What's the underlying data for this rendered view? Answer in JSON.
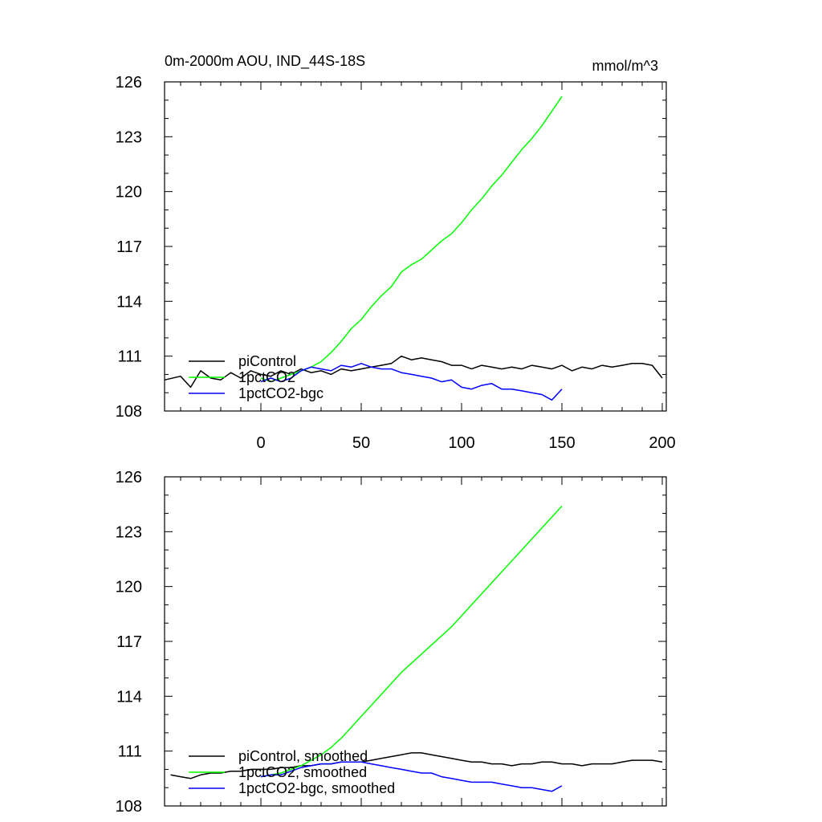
{
  "chart_data": [
    {
      "type": "line",
      "title": "0m-2000m AOU, IND_44S-18S",
      "units": "mmol/m^3",
      "xlim": [
        -48,
        202
      ],
      "ylim": [
        108,
        126
      ],
      "x_ticks": [
        0,
        50,
        100,
        150,
        200
      ],
      "x_tick_labels": [
        "0",
        "50",
        "100",
        "150",
        "200"
      ],
      "y_ticks": [
        108,
        111,
        114,
        117,
        120,
        123,
        126
      ],
      "y_tick_labels": [
        "108",
        "111",
        "114",
        "117",
        "120",
        "123",
        "126"
      ],
      "legend_position": "bottom-left",
      "series": [
        {
          "name": "piControl",
          "color": "#000000",
          "x": [
            -48,
            -40,
            -35,
            -30,
            -25,
            -20,
            -15,
            -10,
            -5,
            0,
            5,
            10,
            15,
            20,
            25,
            30,
            35,
            40,
            45,
            50,
            55,
            60,
            65,
            70,
            75,
            80,
            85,
            90,
            95,
            100,
            105,
            110,
            115,
            120,
            125,
            130,
            135,
            140,
            145,
            150,
            155,
            160,
            165,
            170,
            175,
            180,
            185,
            190,
            195,
            200
          ],
          "values": [
            109.7,
            109.9,
            109.3,
            110.2,
            109.8,
            109.7,
            110.1,
            109.8,
            110.2,
            110.0,
            109.9,
            110.2,
            110.0,
            110.3,
            110.1,
            110.2,
            110.0,
            110.3,
            110.2,
            110.3,
            110.4,
            110.5,
            110.6,
            111.0,
            110.8,
            110.9,
            110.8,
            110.7,
            110.5,
            110.5,
            110.3,
            110.5,
            110.4,
            110.3,
            110.4,
            110.3,
            110.5,
            110.4,
            110.3,
            110.5,
            110.2,
            110.4,
            110.3,
            110.5,
            110.4,
            110.5,
            110.6,
            110.6,
            110.5,
            109.8
          ]
        },
        {
          "name": "1pctCO2",
          "color": "#00ff00",
          "x": [
            0,
            5,
            10,
            15,
            20,
            25,
            30,
            35,
            40,
            45,
            50,
            55,
            60,
            65,
            70,
            75,
            80,
            85,
            90,
            95,
            100,
            105,
            110,
            115,
            120,
            125,
            130,
            135,
            140,
            145,
            150
          ],
          "values": [
            109.8,
            109.6,
            109.8,
            110.0,
            110.2,
            110.4,
            110.7,
            111.2,
            111.8,
            112.5,
            113.0,
            113.7,
            114.3,
            114.8,
            115.6,
            116.0,
            116.3,
            116.8,
            117.3,
            117.7,
            118.3,
            119.0,
            119.6,
            120.3,
            120.9,
            121.6,
            122.3,
            122.9,
            123.6,
            124.4,
            125.2
          ]
        },
        {
          "name": "1pctCO2-bgc",
          "color": "#0000ff",
          "x": [
            0,
            5,
            10,
            15,
            20,
            25,
            30,
            35,
            40,
            45,
            50,
            55,
            60,
            65,
            70,
            75,
            80,
            85,
            90,
            95,
            100,
            105,
            110,
            115,
            120,
            125,
            130,
            135,
            140,
            145,
            150
          ],
          "values": [
            109.6,
            109.8,
            109.6,
            109.8,
            110.2,
            110.4,
            110.3,
            110.2,
            110.5,
            110.4,
            110.6,
            110.4,
            110.3,
            110.3,
            110.1,
            110.0,
            109.9,
            109.8,
            109.6,
            109.7,
            109.3,
            109.2,
            109.4,
            109.5,
            109.2,
            109.2,
            109.1,
            109.0,
            108.9,
            108.6,
            109.2
          ]
        }
      ]
    },
    {
      "type": "line",
      "title": "",
      "units": "",
      "xlim": [
        -48,
        202
      ],
      "ylim": [
        108,
        126
      ],
      "x_ticks": [
        0,
        50,
        100,
        150,
        200
      ],
      "x_tick_labels": [],
      "y_ticks": [
        108,
        111,
        114,
        117,
        120,
        123,
        126
      ],
      "y_tick_labels": [
        "108",
        "111",
        "114",
        "117",
        "120",
        "123",
        "126"
      ],
      "legend_position": "bottom-left",
      "series": [
        {
          "name": "piControl, smoothed",
          "color": "#000000",
          "x": [
            -45,
            -40,
            -35,
            -30,
            -25,
            -20,
            -15,
            -10,
            -5,
            0,
            5,
            10,
            15,
            20,
            25,
            30,
            35,
            40,
            45,
            50,
            55,
            60,
            65,
            70,
            75,
            80,
            85,
            90,
            95,
            100,
            105,
            110,
            115,
            120,
            125,
            130,
            135,
            140,
            145,
            150,
            155,
            160,
            165,
            170,
            175,
            180,
            185,
            190,
            195,
            200
          ],
          "values": [
            109.7,
            109.6,
            109.5,
            109.7,
            109.8,
            109.8,
            109.9,
            109.9,
            110.0,
            110.0,
            110.0,
            110.1,
            110.1,
            110.2,
            110.2,
            110.3,
            110.3,
            110.4,
            110.4,
            110.4,
            110.5,
            110.6,
            110.7,
            110.8,
            110.9,
            110.9,
            110.8,
            110.7,
            110.6,
            110.5,
            110.4,
            110.4,
            110.3,
            110.3,
            110.2,
            110.3,
            110.3,
            110.4,
            110.4,
            110.3,
            110.3,
            110.2,
            110.3,
            110.3,
            110.3,
            110.4,
            110.5,
            110.5,
            110.5,
            110.4
          ]
        },
        {
          "name": "1pctCO2, smoothed",
          "color": "#00ff00",
          "x": [
            0,
            5,
            10,
            15,
            20,
            25,
            30,
            35,
            40,
            45,
            50,
            55,
            60,
            65,
            70,
            75,
            80,
            85,
            90,
            95,
            100,
            105,
            110,
            115,
            120,
            125,
            130,
            135,
            140,
            145,
            150
          ],
          "values": [
            109.6,
            109.7,
            109.8,
            110.0,
            110.2,
            110.5,
            110.8,
            111.2,
            111.7,
            112.3,
            112.9,
            113.5,
            114.1,
            114.7,
            115.3,
            115.8,
            116.3,
            116.8,
            117.3,
            117.8,
            118.4,
            119.0,
            119.6,
            120.2,
            120.8,
            121.4,
            122.0,
            122.6,
            123.2,
            123.8,
            124.4
          ]
        },
        {
          "name": "1pctCO2-bgc, smoothed",
          "color": "#0000ff",
          "x": [
            0,
            5,
            10,
            15,
            20,
            25,
            30,
            35,
            40,
            45,
            50,
            55,
            60,
            65,
            70,
            75,
            80,
            85,
            90,
            95,
            100,
            105,
            110,
            115,
            120,
            125,
            130,
            135,
            140,
            145,
            150
          ],
          "values": [
            109.6,
            109.7,
            109.7,
            109.9,
            110.1,
            110.2,
            110.3,
            110.3,
            110.4,
            110.4,
            110.4,
            110.3,
            110.2,
            110.1,
            110.0,
            109.9,
            109.8,
            109.8,
            109.6,
            109.5,
            109.4,
            109.3,
            109.3,
            109.3,
            109.2,
            109.1,
            109.0,
            109.0,
            108.9,
            108.8,
            109.1
          ]
        }
      ]
    }
  ]
}
